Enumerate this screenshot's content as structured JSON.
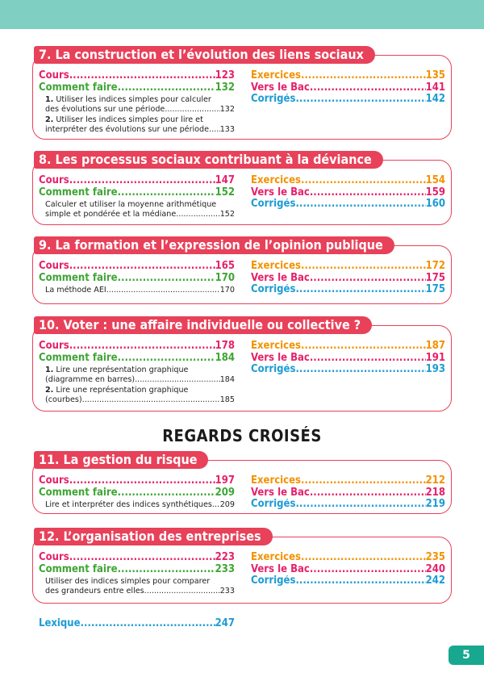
{
  "colors": {
    "topbar": "#7fcfc3",
    "chapter_accent": "#e8415a",
    "cours": "#e6216a",
    "comment_faire": "#3fa535",
    "exercices": "#f39200",
    "vers_le_bac": "#e6216a",
    "corriges": "#1d9bd5",
    "page_badge": "#17a88f"
  },
  "labels": {
    "cours": "Cours",
    "comment_faire": "Comment faire",
    "exercices": "Exercices",
    "vers_le_bac": "Vers le Bac",
    "corriges": "Corrigés"
  },
  "chapters": [
    {
      "title": "7. La construction et l’évolution des liens sociaux",
      "cours": "123",
      "comment_faire": "132",
      "exercices": "135",
      "vers_le_bac": "141",
      "corriges": "142",
      "subs": [
        {
          "num": "1.",
          "line1": "Utiliser les indices simples pour calculer",
          "line2": "des évolutions sur une période",
          "page": "132"
        },
        {
          "num": "2.",
          "line1": "Utiliser les indices simples pour lire et",
          "line2": "interpréter des évolutions sur une période",
          "page": "133"
        }
      ]
    },
    {
      "title": "8. Les processus sociaux contribuant à la déviance",
      "cours": "147",
      "comment_faire": "152",
      "exercices": "154",
      "vers_le_bac": "159",
      "corriges": "160",
      "subs": [
        {
          "num": "",
          "line1": "Calculer et utiliser la moyenne arithmétique",
          "line2": "simple et pondérée et la médiane",
          "page": "152"
        }
      ]
    },
    {
      "title": "9. La formation et l’expression de l’opinion publique",
      "cours": "165",
      "comment_faire": "170",
      "exercices": "172",
      "vers_le_bac": "175",
      "corriges": "175",
      "subs": [
        {
          "num": "",
          "line1": "",
          "line2": "La méthode AEI",
          "page": "170"
        }
      ]
    },
    {
      "title": "10. Voter : une affaire individuelle ou collective ?",
      "cours": "178",
      "comment_faire": "184",
      "exercices": "187",
      "vers_le_bac": "191",
      "corriges": "193",
      "subs": [
        {
          "num": "1.",
          "line1": "Lire une représentation graphique",
          "line2": "(diagramme en barres)",
          "page": "184"
        },
        {
          "num": "2.",
          "line1": "Lire une représentation graphique",
          "line2": "(courbes)",
          "page": "185"
        }
      ]
    },
    {
      "title": "11. La gestion du risque",
      "cours": "197",
      "comment_faire": "209",
      "exercices": "212",
      "vers_le_bac": "218",
      "corriges": "219",
      "subs": [
        {
          "num": "",
          "line1": "",
          "line2": "Lire et interpréter des indices synthétiques",
          "page": "209"
        }
      ]
    },
    {
      "title": "12. L’organisation des entreprises",
      "cours": "223",
      "comment_faire": "233",
      "exercices": "235",
      "vers_le_bac": "240",
      "corriges": "242",
      "subs": [
        {
          "num": "",
          "line1": "Utiliser des indices simples pour comparer",
          "line2": "des grandeurs entre elles",
          "page": "233"
        }
      ]
    }
  ],
  "section_heading": "REGARDS CROISÉS",
  "lexique": {
    "label": "Lexique",
    "page": "247"
  },
  "page_number": "5"
}
